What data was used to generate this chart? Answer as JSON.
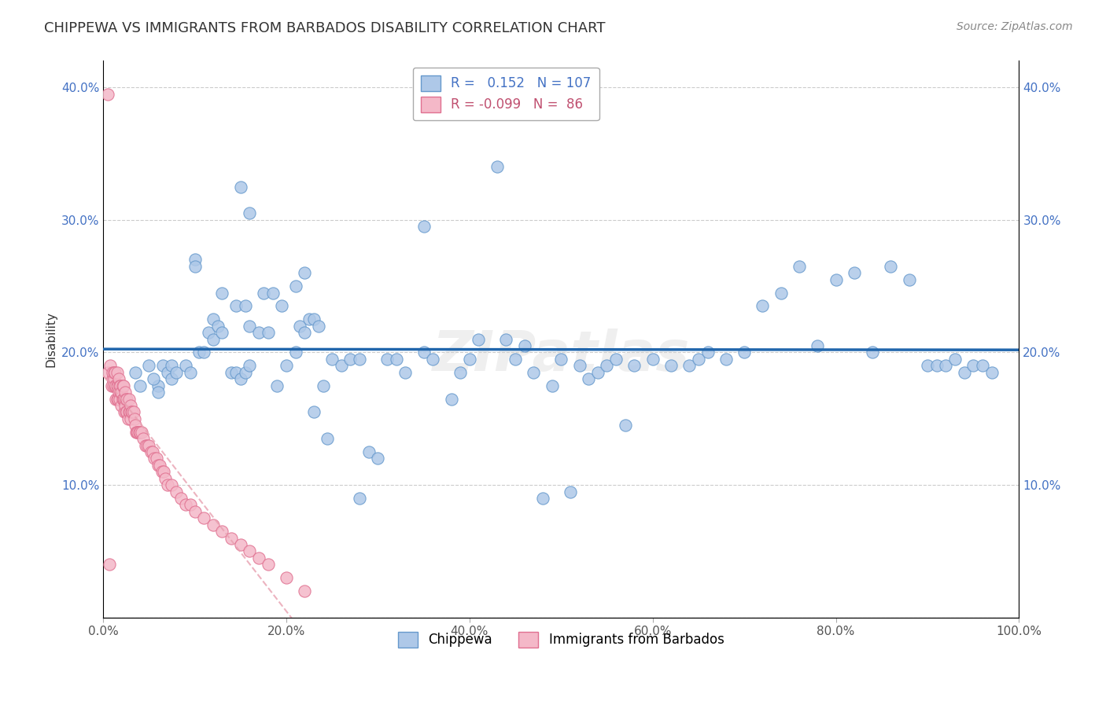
{
  "title": "CHIPPEWA VS IMMIGRANTS FROM BARBADOS DISABILITY CORRELATION CHART",
  "source": "Source: ZipAtlas.com",
  "ylabel": "Disability",
  "xlabel": "",
  "chippewa_R": 0.152,
  "chippewa_N": 107,
  "barbados_R": -0.099,
  "barbados_N": 86,
  "chippewa_color": "#aec8e8",
  "barbados_color": "#f4b8c8",
  "chippewa_edge_color": "#6699cc",
  "barbados_edge_color": "#e07090",
  "chippewa_line_color": "#2166ac",
  "barbados_line_color": "#e8a0b0",
  "xlim": [
    0,
    1.0
  ],
  "ylim": [
    0,
    0.42
  ],
  "xticks": [
    0.0,
    0.2,
    0.4,
    0.6,
    0.8,
    1.0
  ],
  "yticks": [
    0.0,
    0.1,
    0.2,
    0.3,
    0.4
  ],
  "xticklabels": [
    "0.0%",
    "20.0%",
    "40.0%",
    "60.0%",
    "80.0%",
    "100.0%"
  ],
  "yticklabels": [
    "",
    "10.0%",
    "20.0%",
    "30.0%",
    "40.0%"
  ],
  "chippewa_x": [
    0.035,
    0.06,
    0.06,
    0.065,
    0.07,
    0.075,
    0.075,
    0.08,
    0.09,
    0.095,
    0.1,
    0.1,
    0.105,
    0.11,
    0.115,
    0.12,
    0.12,
    0.125,
    0.13,
    0.14,
    0.145,
    0.15,
    0.155,
    0.16,
    0.16,
    0.17,
    0.18,
    0.19,
    0.2,
    0.21,
    0.215,
    0.22,
    0.225,
    0.23,
    0.235,
    0.24,
    0.25,
    0.26,
    0.27,
    0.28,
    0.29,
    0.3,
    0.31,
    0.32,
    0.33,
    0.35,
    0.36,
    0.38,
    0.39,
    0.4,
    0.41,
    0.43,
    0.44,
    0.45,
    0.46,
    0.47,
    0.49,
    0.5,
    0.51,
    0.52,
    0.53,
    0.54,
    0.55,
    0.56,
    0.57,
    0.58,
    0.6,
    0.62,
    0.64,
    0.65,
    0.66,
    0.68,
    0.7,
    0.72,
    0.74,
    0.76,
    0.78,
    0.8,
    0.82,
    0.84,
    0.86,
    0.88,
    0.9,
    0.91,
    0.92,
    0.93,
    0.94,
    0.95,
    0.96,
    0.97,
    0.04,
    0.05,
    0.055,
    0.145,
    0.13,
    0.28,
    0.15,
    0.16,
    0.21,
    0.22,
    0.155,
    0.175,
    0.185,
    0.195,
    0.23,
    0.245,
    0.35,
    0.48
  ],
  "chippewa_y": [
    0.185,
    0.175,
    0.17,
    0.19,
    0.185,
    0.18,
    0.19,
    0.185,
    0.19,
    0.185,
    0.27,
    0.265,
    0.2,
    0.2,
    0.215,
    0.21,
    0.225,
    0.22,
    0.215,
    0.185,
    0.185,
    0.18,
    0.185,
    0.19,
    0.22,
    0.215,
    0.215,
    0.175,
    0.19,
    0.2,
    0.22,
    0.215,
    0.225,
    0.225,
    0.22,
    0.175,
    0.195,
    0.19,
    0.195,
    0.195,
    0.125,
    0.12,
    0.195,
    0.195,
    0.185,
    0.2,
    0.195,
    0.165,
    0.185,
    0.195,
    0.21,
    0.34,
    0.21,
    0.195,
    0.205,
    0.185,
    0.175,
    0.195,
    0.095,
    0.19,
    0.18,
    0.185,
    0.19,
    0.195,
    0.145,
    0.19,
    0.195,
    0.19,
    0.19,
    0.195,
    0.2,
    0.195,
    0.2,
    0.235,
    0.245,
    0.265,
    0.205,
    0.255,
    0.26,
    0.2,
    0.265,
    0.255,
    0.19,
    0.19,
    0.19,
    0.195,
    0.185,
    0.19,
    0.19,
    0.185,
    0.175,
    0.19,
    0.18,
    0.235,
    0.245,
    0.09,
    0.325,
    0.305,
    0.25,
    0.26,
    0.235,
    0.245,
    0.245,
    0.235,
    0.155,
    0.135,
    0.295,
    0.09
  ],
  "barbados_x": [
    0.005,
    0.008,
    0.009,
    0.01,
    0.01,
    0.011,
    0.012,
    0.012,
    0.013,
    0.013,
    0.014,
    0.014,
    0.015,
    0.015,
    0.015,
    0.016,
    0.016,
    0.017,
    0.017,
    0.018,
    0.018,
    0.019,
    0.019,
    0.02,
    0.02,
    0.021,
    0.021,
    0.022,
    0.022,
    0.023,
    0.023,
    0.024,
    0.024,
    0.025,
    0.025,
    0.026,
    0.026,
    0.027,
    0.028,
    0.028,
    0.029,
    0.03,
    0.03,
    0.031,
    0.032,
    0.033,
    0.034,
    0.035,
    0.036,
    0.037,
    0.038,
    0.039,
    0.04,
    0.042,
    0.044,
    0.046,
    0.048,
    0.05,
    0.052,
    0.054,
    0.056,
    0.058,
    0.06,
    0.062,
    0.064,
    0.066,
    0.068,
    0.07,
    0.075,
    0.08,
    0.085,
    0.09,
    0.095,
    0.1,
    0.11,
    0.12,
    0.13,
    0.14,
    0.15,
    0.16,
    0.17,
    0.18,
    0.2,
    0.22,
    0.005,
    0.007
  ],
  "barbados_y": [
    0.185,
    0.19,
    0.175,
    0.18,
    0.185,
    0.175,
    0.18,
    0.185,
    0.175,
    0.185,
    0.165,
    0.175,
    0.165,
    0.175,
    0.185,
    0.175,
    0.165,
    0.17,
    0.18,
    0.165,
    0.175,
    0.17,
    0.175,
    0.16,
    0.17,
    0.165,
    0.175,
    0.165,
    0.175,
    0.155,
    0.165,
    0.16,
    0.17,
    0.155,
    0.165,
    0.155,
    0.165,
    0.15,
    0.155,
    0.165,
    0.155,
    0.15,
    0.16,
    0.155,
    0.155,
    0.155,
    0.15,
    0.145,
    0.14,
    0.14,
    0.14,
    0.14,
    0.14,
    0.14,
    0.135,
    0.13,
    0.13,
    0.13,
    0.125,
    0.125,
    0.12,
    0.12,
    0.115,
    0.115,
    0.11,
    0.11,
    0.105,
    0.1,
    0.1,
    0.095,
    0.09,
    0.085,
    0.085,
    0.08,
    0.075,
    0.07,
    0.065,
    0.06,
    0.055,
    0.05,
    0.045,
    0.04,
    0.03,
    0.02,
    0.395,
    0.04
  ],
  "background_color": "#ffffff",
  "grid_color": "#cccccc",
  "watermark": "ZIPatlas",
  "title_fontsize": 13,
  "axis_label_fontsize": 11,
  "tick_fontsize": 11,
  "legend_fontsize": 12,
  "source_fontsize": 10,
  "legend_blue_color": "#4472c4",
  "legend_pink_color": "#c05070"
}
